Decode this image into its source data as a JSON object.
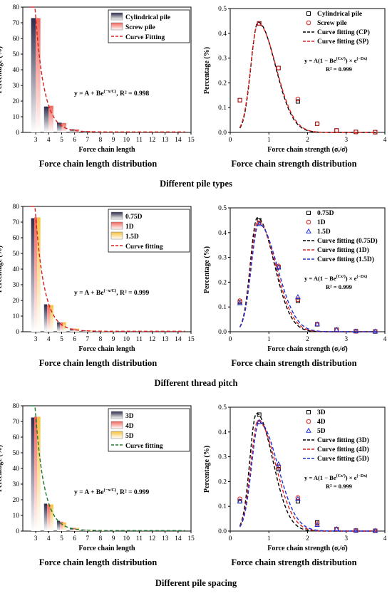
{
  "figure": {
    "rows": [
      {
        "title": "Different pile types"
      },
      {
        "title": "Different thread pitch"
      },
      {
        "title": "Different pile spacing"
      }
    ]
  },
  "chart_data": [
    {
      "type": "bar",
      "caption": "Force chain length distribution",
      "xlabel": "Force chain length",
      "ylabel": "Percentage (%)",
      "xlim": [
        2,
        15
      ],
      "ylim": [
        0,
        80
      ],
      "xticks": [
        3,
        4,
        5,
        6,
        7,
        8,
        9,
        10,
        11,
        12,
        13,
        14,
        15
      ],
      "yticks": [
        0,
        10,
        20,
        30,
        40,
        50,
        60,
        70,
        80
      ],
      "categories": [
        3,
        4,
        5,
        6,
        7,
        8,
        9,
        10,
        11,
        12,
        13,
        14
      ],
      "series": [
        {
          "name": "Cylindrical pile",
          "color": "#2b2b4a",
          "values": [
            73.0,
            16.5,
            6.2,
            2.0,
            0.8,
            0.4,
            0.2,
            0.1,
            0.1,
            0.05,
            0.05,
            0.05
          ]
        },
        {
          "name": "Screw pile",
          "color": "#f0645a",
          "values": [
            73.0,
            17.0,
            6.0,
            2.0,
            0.8,
            0.4,
            0.2,
            0.1,
            0.1,
            0.05,
            0.05,
            0.05
          ]
        }
      ],
      "fit": {
        "name": "Curve Fitting",
        "color": "#d42020",
        "A": 0.3,
        "B": 73,
        "x0": 3,
        "C": 0.68
      },
      "equation": {
        "lead": "y = A + Be",
        "sup": "(−x/C)",
        "tail": ", R² = 0.998"
      },
      "legend": "top-right"
    },
    {
      "type": "scatter",
      "caption": "Force chain strength distribution",
      "xlabel": "Force chain strength (σᵢ/σ̄)",
      "ylabel": "Percentage (%)",
      "xlim": [
        0,
        4
      ],
      "ylim": [
        0,
        0.5
      ],
      "xticks": [
        0,
        1,
        2,
        3,
        4
      ],
      "yticks": [
        0.0,
        0.1,
        0.2,
        0.3,
        0.4,
        0.5
      ],
      "x": [
        0.25,
        0.75,
        1.25,
        1.75,
        2.25,
        2.75,
        3.25,
        3.75
      ],
      "series": [
        {
          "name": "Cylindrical pile",
          "marker": "square",
          "color": "#000000",
          "values": [
            0.13,
            0.44,
            0.26,
            0.125,
            0.035,
            0.008,
            0.002,
            0.001
          ]
        },
        {
          "name": "Screw pile",
          "marker": "circle",
          "color": "#e02020",
          "values": [
            0.13,
            0.44,
            0.26,
            0.135,
            0.035,
            0.008,
            0.002,
            0.001
          ]
        }
      ],
      "fits": [
        {
          "name": "Curve fitting (CP)",
          "color": "#000000",
          "A": 0.445,
          "Cq": 0.5,
          "D": 0.0,
          "s": 0.16,
          "peak": 0.72
        },
        {
          "name": "Curve fitting (SP)",
          "color": "#e02020",
          "A": 0.44,
          "Cq": 0.5,
          "D": 0.0,
          "s": 0.165,
          "peak": 0.72
        }
      ],
      "equation": {
        "lead": "y = A(1 − Be",
        "sup1": "(Cx²)",
        "mid": ") × e",
        "sup2": "(−Dx)",
        "r2": "R² = 0.999"
      },
      "legend": "top-right"
    },
    {
      "type": "bar",
      "caption": "Force chain length distribution",
      "xlabel": "Force chain length",
      "ylabel": "Percentage (%)",
      "xlim": [
        2,
        15
      ],
      "ylim": [
        0,
        80
      ],
      "xticks": [
        3,
        4,
        5,
        6,
        7,
        8,
        9,
        10,
        11,
        12,
        13,
        14,
        15
      ],
      "yticks": [
        0,
        10,
        20,
        30,
        40,
        50,
        60,
        70,
        80
      ],
      "categories": [
        3,
        4,
        5,
        6,
        7,
        8,
        9,
        10,
        11,
        12,
        13,
        14
      ],
      "series": [
        {
          "name": "0.75D",
          "color": "#2b2b4a",
          "values": [
            72.5,
            17.5,
            6.0,
            2.0,
            0.8,
            0.4,
            0.2,
            0.1,
            0.1,
            0.05,
            0.05,
            0.05
          ]
        },
        {
          "name": "1D",
          "color": "#f0645a",
          "values": [
            73.0,
            17.0,
            6.0,
            2.0,
            0.8,
            0.4,
            0.2,
            0.1,
            0.1,
            0.05,
            0.05,
            0.05
          ]
        },
        {
          "name": "1.5D",
          "color": "#f5c23c",
          "values": [
            73.0,
            17.0,
            6.0,
            2.0,
            0.8,
            0.4,
            0.2,
            0.1,
            0.1,
            0.05,
            0.05,
            0.05
          ]
        }
      ],
      "fit": {
        "name": "Curve fitting",
        "color": "#d42020",
        "A": 0.3,
        "B": 73,
        "x0": 3,
        "C": 0.7
      },
      "equation": {
        "lead": "y = A + Be",
        "sup": "(−x/C)",
        "tail": ", R² = 0.999"
      },
      "legend": "top-right"
    },
    {
      "type": "scatter",
      "caption": "Force chain strength distribution",
      "xlabel": "Force chain strength (σᵢ/σ̄)",
      "ylabel": "Percentage (%)",
      "xlim": [
        0,
        4
      ],
      "ylim": [
        0,
        0.5
      ],
      "xticks": [
        0,
        1,
        2,
        3,
        4
      ],
      "yticks": [
        0.0,
        0.1,
        0.2,
        0.3,
        0.4,
        0.5
      ],
      "x": [
        0.25,
        0.75,
        1.25,
        1.75,
        2.25,
        2.75,
        3.25,
        3.75
      ],
      "series": [
        {
          "name": "0.75D",
          "marker": "square",
          "color": "#000000",
          "values": [
            0.12,
            0.45,
            0.26,
            0.125,
            0.03,
            0.008,
            0.002,
            0.001
          ]
        },
        {
          "name": "1D",
          "marker": "circle",
          "color": "#e02020",
          "values": [
            0.125,
            0.44,
            0.265,
            0.13,
            0.03,
            0.008,
            0.002,
            0.001
          ]
        },
        {
          "name": "1.5D",
          "marker": "triangle",
          "color": "#2030d0",
          "values": [
            0.115,
            0.435,
            0.26,
            0.14,
            0.03,
            0.008,
            0.002,
            0.001
          ]
        }
      ],
      "fits": [
        {
          "name": "Curve fitting (0.75D)",
          "color": "#000000",
          "A": 0.46,
          "s": 0.155,
          "peak": 0.7
        },
        {
          "name": "Curve fitting (1D)",
          "color": "#e02020",
          "A": 0.445,
          "s": 0.162,
          "peak": 0.72
        },
        {
          "name": "Curve fitting (1.5D)",
          "color": "#2030d0",
          "A": 0.435,
          "s": 0.17,
          "peak": 0.74
        }
      ],
      "equation": {
        "lead": "y = A(1 − Be",
        "sup1": "(Cx²)",
        "mid": ") × e",
        "sup2": "(−Dx)",
        "r2": "R² = 0.999"
      },
      "legend": "top-right"
    },
    {
      "type": "bar",
      "caption": "Force chain length distribution",
      "xlabel": "Force chain length",
      "ylabel": "Percentage (%)",
      "xlim": [
        2,
        15
      ],
      "ylim": [
        0,
        80
      ],
      "xticks": [
        3,
        4,
        5,
        6,
        7,
        8,
        9,
        10,
        11,
        12,
        13,
        14,
        15
      ],
      "yticks": [
        0,
        10,
        20,
        30,
        40,
        50,
        60,
        70,
        80
      ],
      "categories": [
        3,
        4,
        5,
        6,
        7,
        8,
        9,
        10,
        11,
        12,
        13,
        14
      ],
      "series": [
        {
          "name": "3D",
          "color": "#2b2b4a",
          "values": [
            72.5,
            17.5,
            6.5,
            2.0,
            0.8,
            0.4,
            0.2,
            0.1,
            0.1,
            0.05,
            0.05,
            0.05
          ]
        },
        {
          "name": "4D",
          "color": "#f0645a",
          "values": [
            73.0,
            17.0,
            6.0,
            2.0,
            0.8,
            0.4,
            0.2,
            0.1,
            0.1,
            0.05,
            0.05,
            0.05
          ]
        },
        {
          "name": "5D",
          "color": "#f5c23c",
          "values": [
            73.0,
            17.0,
            5.5,
            2.0,
            0.8,
            0.4,
            0.2,
            0.1,
            0.1,
            0.05,
            0.05,
            0.05
          ]
        }
      ],
      "fit": {
        "name": "Curve fitting",
        "color": "#1a7a2a",
        "A": 0.3,
        "B": 73,
        "x0": 3,
        "C": 0.7
      },
      "equation": {
        "lead": "y = A + Be",
        "sup": "(−x/C)",
        "tail": ", R² = 0.999"
      },
      "legend": "top-right"
    },
    {
      "type": "scatter",
      "caption": "Force chain strength distribution",
      "xlabel": "Force chain strength (σᵢ/σ̄)",
      "ylabel": "Percentage (%)",
      "xlim": [
        0,
        4
      ],
      "ylim": [
        0,
        0.5
      ],
      "xticks": [
        0,
        1,
        2,
        3,
        4
      ],
      "yticks": [
        0.0,
        0.1,
        0.2,
        0.3,
        0.4,
        0.5
      ],
      "x": [
        0.25,
        0.75,
        1.25,
        1.75,
        2.25,
        2.75,
        3.25,
        3.75
      ],
      "series": [
        {
          "name": "3D",
          "marker": "square",
          "color": "#000000",
          "values": [
            0.12,
            0.47,
            0.25,
            0.12,
            0.035,
            0.008,
            0.002,
            0.001
          ]
        },
        {
          "name": "4D",
          "marker": "circle",
          "color": "#e02020",
          "values": [
            0.13,
            0.44,
            0.26,
            0.135,
            0.03,
            0.008,
            0.002,
            0.001
          ]
        },
        {
          "name": "5D",
          "marker": "triangle",
          "color": "#2030d0",
          "values": [
            0.12,
            0.44,
            0.27,
            0.13,
            0.025,
            0.008,
            0.002,
            0.001
          ]
        }
      ],
      "fits": [
        {
          "name": "Curve fitting (3D)",
          "color": "#000000",
          "A": 0.475,
          "s": 0.15,
          "peak": 0.68
        },
        {
          "name": "Curve fitting (4D)",
          "color": "#e02020",
          "A": 0.445,
          "s": 0.162,
          "peak": 0.72
        },
        {
          "name": "Curve fitting (5D)",
          "color": "#2030d0",
          "A": 0.44,
          "s": 0.17,
          "peak": 0.75
        }
      ],
      "equation": {
        "lead": "y = A(1 − Be",
        "sup1": "(Cx²)",
        "mid": ") × e",
        "sup2": "(−Dx)",
        "r2": "R² = 0.999"
      },
      "legend": "top-right"
    }
  ]
}
